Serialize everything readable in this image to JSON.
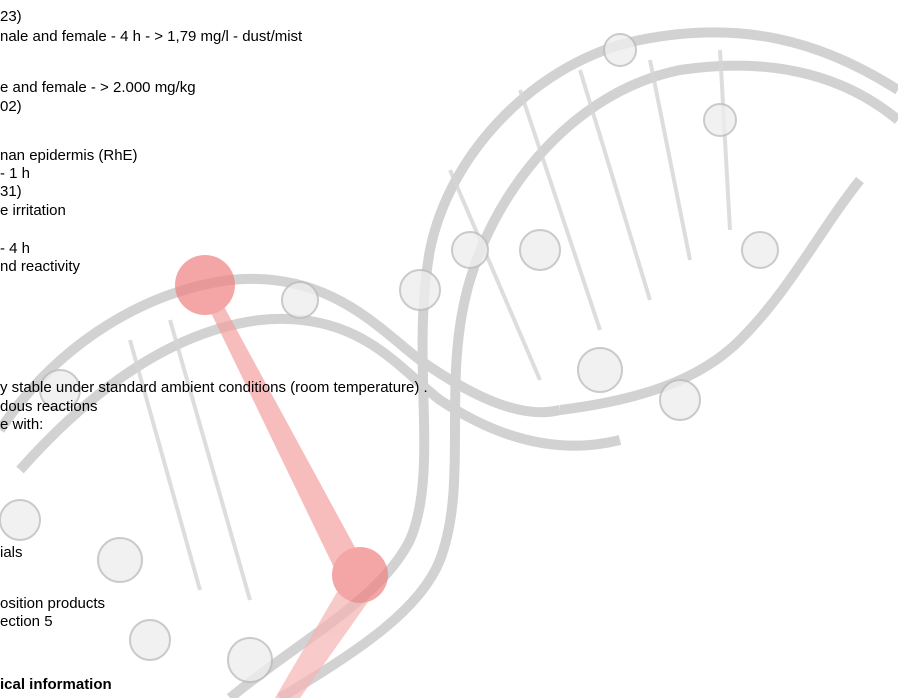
{
  "lines": [
    "23)",
    "nale and female - 4 h - > 1,79 mg/l - dust/mist",
    "e and female - > 2.000 mg/kg",
    "02)",
    "nan epidermis (RhE)",
    "- 1 h",
    "31)",
    "e irritation",
    "- 4 h",
    "nd reactivity",
    "y stable under standard ambient conditions (room temperature) .",
    "dous reactions",
    "e with:",
    "ials",
    "osition products",
    "ection 5"
  ],
  "section_heading": "ical information"
}
